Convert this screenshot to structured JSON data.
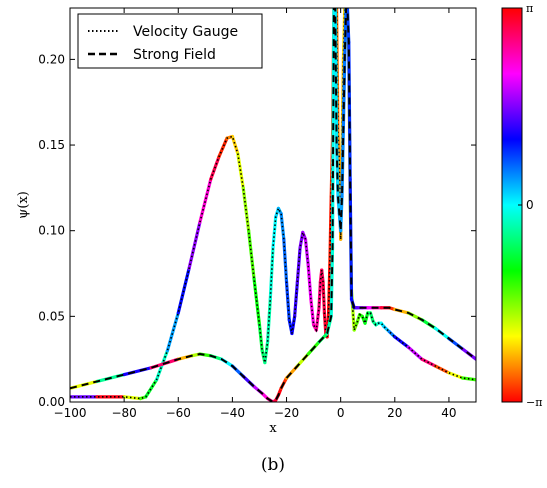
{
  "chart_data": {
    "type": "line",
    "xlabel": "x",
    "ylabel": "ψ(x)",
    "xlim": [
      -100,
      50
    ],
    "ylim": [
      0,
      0.23
    ],
    "xticks": [
      -100,
      -80,
      -60,
      -40,
      -20,
      0,
      20,
      40
    ],
    "xtick_labels": [
      "−100",
      "−80",
      "−60",
      "−40",
      "−20",
      "0",
      "20",
      "40"
    ],
    "yticks": [
      0.0,
      0.05,
      0.1,
      0.15,
      0.2
    ],
    "ytick_labels": [
      "0.00",
      "0.05",
      "0.10",
      "0.15",
      "0.20"
    ],
    "grid": false,
    "legend_position": "top-left",
    "series": [
      {
        "name": "Velocity Gauge",
        "style": "dotted",
        "x": [
          -100,
          -90,
          -80,
          -74,
          -72,
          -68,
          -64,
          -60,
          -56,
          -52,
          -48,
          -45,
          -42,
          -40,
          -38,
          -36,
          -34,
          -32,
          -30,
          -29,
          -28,
          -27,
          -26,
          -25,
          -24,
          -23,
          -22,
          -21,
          -20,
          -19,
          -18,
          -17,
          -16,
          -15,
          -14,
          -13,
          -12,
          -11,
          -10,
          -9,
          -8,
          -7.5,
          -7,
          -6.5,
          -6,
          -5.5,
          -5,
          -4.5,
          -4,
          -3.5,
          -3,
          -2.5,
          -2,
          -1.5,
          -1,
          -0.5,
          0,
          0.5,
          1,
          1.5,
          2,
          2.5,
          3,
          3.5,
          4,
          5,
          6,
          7,
          8,
          9,
          10,
          11,
          12,
          13,
          14,
          15,
          16,
          18,
          20,
          25,
          30,
          35,
          40,
          45,
          50
        ],
        "y": [
          0.003,
          0.003,
          0.003,
          0.002,
          0.003,
          0.013,
          0.03,
          0.052,
          0.078,
          0.105,
          0.13,
          0.143,
          0.154,
          0.155,
          0.145,
          0.125,
          0.1,
          0.072,
          0.045,
          0.03,
          0.023,
          0.035,
          0.06,
          0.09,
          0.108,
          0.113,
          0.11,
          0.095,
          0.07,
          0.048,
          0.04,
          0.05,
          0.07,
          0.09,
          0.099,
          0.095,
          0.08,
          0.06,
          0.045,
          0.042,
          0.055,
          0.07,
          0.077,
          0.07,
          0.052,
          0.04,
          0.038,
          0.05,
          0.08,
          0.12,
          0.155,
          0.23,
          0.23,
          0.23,
          0.158,
          0.14,
          0.095,
          0.15,
          0.2,
          0.23,
          0.23,
          0.23,
          0.2,
          0.12,
          0.065,
          0.042,
          0.046,
          0.051,
          0.05,
          0.046,
          0.052,
          0.052,
          0.047,
          0.045,
          0.046,
          0.046,
          0.044,
          0.041,
          0.038,
          0.032,
          0.025,
          0.021,
          0.017,
          0.014,
          0.013
        ]
      },
      {
        "name": "Strong Field",
        "style": "dashed",
        "x": [
          -100,
          -90,
          -80,
          -70,
          -60,
          -55,
          -52,
          -48,
          -44,
          -40,
          -36,
          -32,
          -29,
          -27,
          -25,
          -24,
          -23,
          -22,
          -20,
          -16,
          -12,
          -8,
          -5,
          -3.5,
          -3,
          -2.5,
          -2,
          -1.5,
          -1,
          -0.5,
          0,
          0.5,
          1,
          1.5,
          2,
          2.5,
          3,
          3.5,
          4,
          5,
          6,
          8,
          10,
          12,
          15,
          18,
          20,
          25,
          30,
          35,
          40,
          45,
          50
        ],
        "y": [
          0.008,
          0.012,
          0.016,
          0.02,
          0.025,
          0.027,
          0.028,
          0.027,
          0.025,
          0.021,
          0.015,
          0.009,
          0.005,
          0.002,
          0.0,
          0.001,
          0.004,
          0.008,
          0.014,
          0.021,
          0.028,
          0.035,
          0.04,
          0.05,
          0.09,
          0.23,
          0.23,
          0.15,
          0.12,
          0.11,
          0.1,
          0.12,
          0.16,
          0.2,
          0.23,
          0.23,
          0.21,
          0.13,
          0.06,
          0.055,
          0.055,
          0.055,
          0.055,
          0.055,
          0.055,
          0.055,
          0.054,
          0.052,
          0.048,
          0.043,
          0.037,
          0.031,
          0.025
        ]
      }
    ],
    "colorbar": {
      "colormap": "hsv",
      "range_labels": [
        "−π",
        "0",
        "π"
      ],
      "values": [
        -3.14159,
        0,
        3.14159
      ]
    }
  },
  "caption": "(b)"
}
